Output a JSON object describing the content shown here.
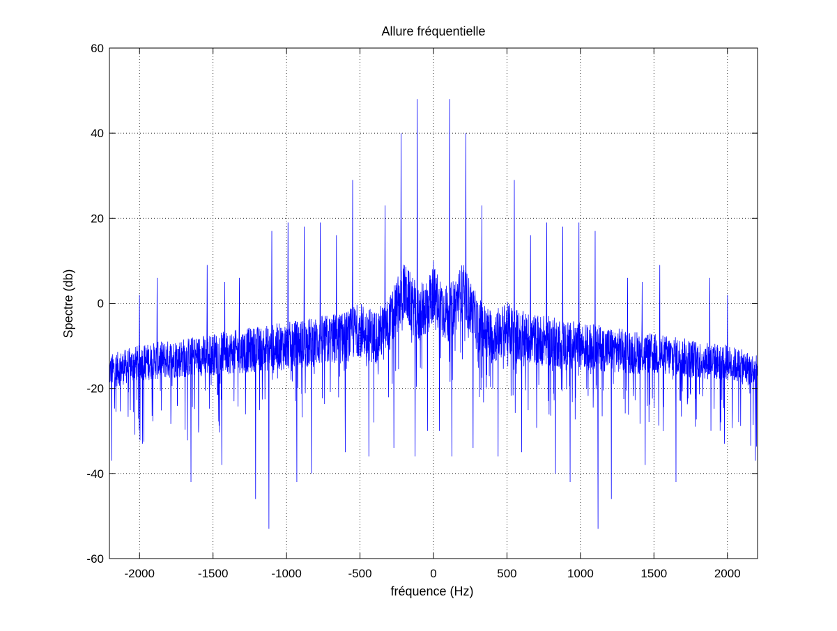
{
  "chart_data": {
    "type": "line",
    "title": "Allure fréquentielle",
    "xlabel": "fréquence (Hz)",
    "ylabel": "Spectre (db)",
    "xlim": [
      -2205,
      2205
    ],
    "ylim": [
      -60,
      60
    ],
    "grid": true,
    "grid_style": "dotted",
    "xticks": [
      -2000,
      -1500,
      -1000,
      -500,
      0,
      500,
      1000,
      1500,
      2000
    ],
    "xtick_labels": [
      "-2000",
      "-1500",
      "-1000",
      "-500",
      "0",
      "500",
      "1000",
      "1500",
      "2000"
    ],
    "yticks": [
      -60,
      -40,
      -20,
      0,
      20,
      40,
      60
    ],
    "ytick_labels": [
      "-60",
      "-40",
      "-20",
      "0",
      "20",
      "40",
      "60"
    ],
    "line_color": "#0000ff",
    "series": [
      {
        "name": "spectre",
        "note": "dense noisy magnitude spectrum, symmetric about 0 Hz",
        "baseline": {
          "x": [
            -2205,
            -2000,
            -1750,
            -1500,
            -1250,
            -1000,
            -800,
            -600,
            -500,
            -400,
            -300,
            -200,
            -100,
            0,
            100,
            200,
            300,
            400,
            500,
            600,
            800,
            1000,
            1250,
            1500,
            1750,
            2000,
            2205
          ],
          "y": [
            -16,
            -14,
            -13,
            -12,
            -11,
            -10,
            -9,
            -8,
            -6,
            -8,
            -5,
            3,
            -3,
            2,
            -3,
            3,
            -5,
            -8,
            -6,
            -8,
            -9,
            -10,
            -11,
            -12,
            -13,
            -14,
            -16
          ]
        },
        "peaks": {
          "x": [
            -2000,
            -1880,
            -1650,
            -1540,
            -1420,
            -1320,
            -1210,
            -1100,
            -990,
            -880,
            -770,
            -660,
            -550,
            -440,
            -330,
            -220,
            -110,
            0,
            110,
            220,
            330,
            440,
            550,
            660,
            770,
            880,
            990,
            1100,
            1210,
            1320,
            1420,
            1540,
            1650,
            1880,
            2000
          ],
          "y": [
            2,
            6,
            3,
            9,
            5,
            6,
            14,
            17,
            19,
            18,
            19,
            16,
            29,
            26,
            23,
            40,
            48,
            10,
            48,
            40,
            23,
            26,
            29,
            16,
            19,
            18,
            19,
            17,
            14,
            6,
            5,
            9,
            3,
            6,
            2
          ]
        },
        "dips": {
          "x": [
            -2190,
            -1980,
            -1650,
            -1440,
            -1210,
            -1120,
            -930,
            -830,
            -600,
            -440,
            -270,
            -125,
            -40,
            40,
            125,
            270,
            440,
            600,
            830,
            930,
            1120,
            1210,
            1440,
            1650,
            1980,
            2190
          ],
          "y": [
            -37,
            -33,
            -42,
            -38,
            -46,
            -53,
            -42,
            -40,
            -35,
            -36,
            -34,
            -36,
            -30,
            -30,
            -36,
            -34,
            -36,
            -35,
            -40,
            -42,
            -53,
            -46,
            -38,
            -42,
            -33,
            -37
          ]
        }
      }
    ]
  }
}
